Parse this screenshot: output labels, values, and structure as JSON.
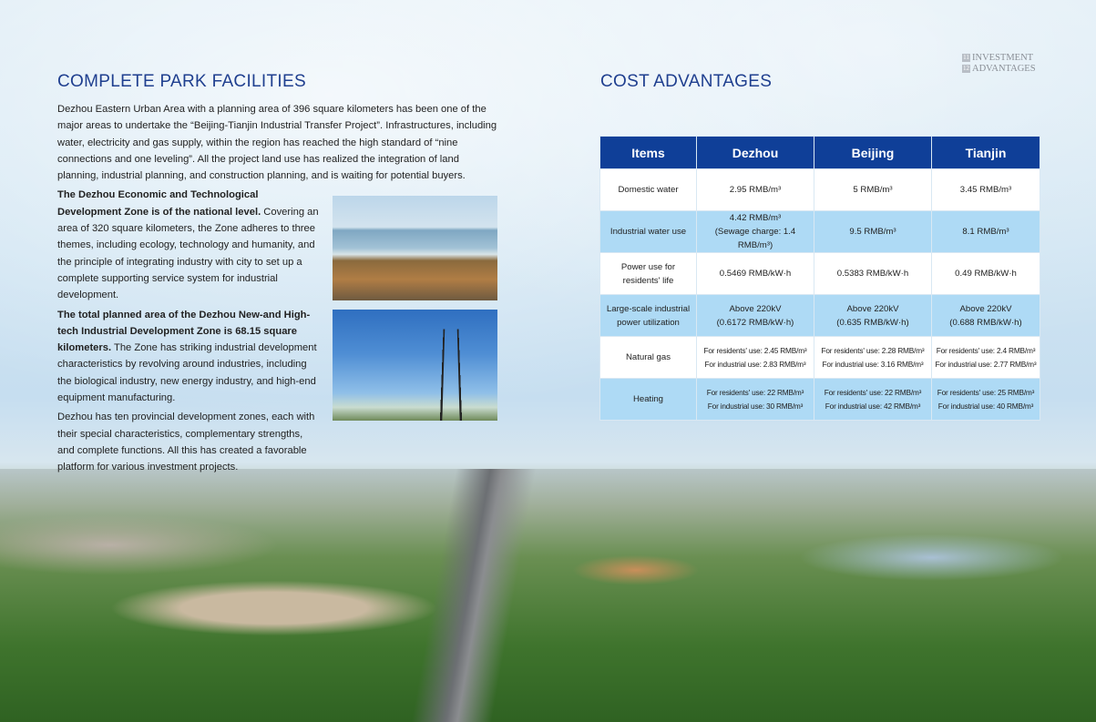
{
  "badge": {
    "pages": [
      "11",
      "12"
    ],
    "line1": "INVESTMENT",
    "line2": "ADVANTAGES"
  },
  "left": {
    "title": "COMPLETE PARK FACILITIES",
    "intro": "Dezhou Eastern Urban Area with a planning area of 396 square kilometers has been one of the major areas to undertake the “Beijing-Tianjin Industrial Transfer Project”. Infrastructures, including water, electricity and gas supply, within the region has reached the high standard of “nine connections and one leveling”. All the project land use has realized the integration of land planning, industrial planning, and construction planning, and is waiting for potential buyers.",
    "p1_bold": "The Dezhou Economic and Technological Development Zone is of the national level.",
    "p1": " Covering an area of 320 square kilometers, the Zone adheres to three themes, including ecology, technology and humanity, and the principle of integrating industry with city to set up a complete supporting service system for industrial development.",
    "p2_bold": "The total planned area of the Dezhou New-and High-tech Industrial Development Zone is 68.15 square kilometers.",
    "p2": " The Zone has striking industrial development characteristics by revolving around industries, including the biological industry, new energy industry, and high-end equipment manufacturing.",
    "p3": "Dezhou has ten provincial development zones, each with their special characteristics, complementary strengths, and complete functions. All this has created a favorable platform for various investment projects."
  },
  "right": {
    "title": "COST ADVANTAGES",
    "table": {
      "headers": [
        "Items",
        "Dezhou",
        "Beijing",
        "Tianjin"
      ],
      "rows": [
        [
          "Domestic water",
          "2.95 RMB/m³",
          "5 RMB/m³",
          "3.45 RMB/m³"
        ],
        [
          "Industrial water use",
          "4.42 RMB/m³\n(Sewage charge: 1.4 RMB/m³)",
          "9.5 RMB/m³",
          "8.1 RMB/m³"
        ],
        [
          "Power use for\nresidents' life",
          "0.5469 RMB/kW·h",
          "0.5383 RMB/kW·h",
          "0.49 RMB/kW·h"
        ],
        [
          "Large-scale industrial\npower utilization",
          "Above 220kV\n(0.6172 RMB/kW·h)",
          "Above 220kV\n(0.635 RMB/kW·h)",
          "Above 220kV\n(0.688 RMB/kW·h)"
        ],
        [
          "Natural gas",
          "For residents' use: 2.45 RMB/m³\nFor industrial use: 2.83 RMB/m³",
          "For residents' use: 2.28 RMB/m³\nFor industrial use: 3.16 RMB/m³",
          "For residents' use: 2.4 RMB/m³\nFor industrial use: 2.77 RMB/m³"
        ],
        [
          "Heating",
          "For residents' use: 22 RMB/m³\nFor industrial use: 30 RMB/m³",
          "For residents' use: 22 RMB/m³\nFor industrial use: 42 RMB/m³",
          "For residents' use: 25 RMB/m³\nFor industrial use: 40 RMB/m³"
        ]
      ]
    }
  }
}
